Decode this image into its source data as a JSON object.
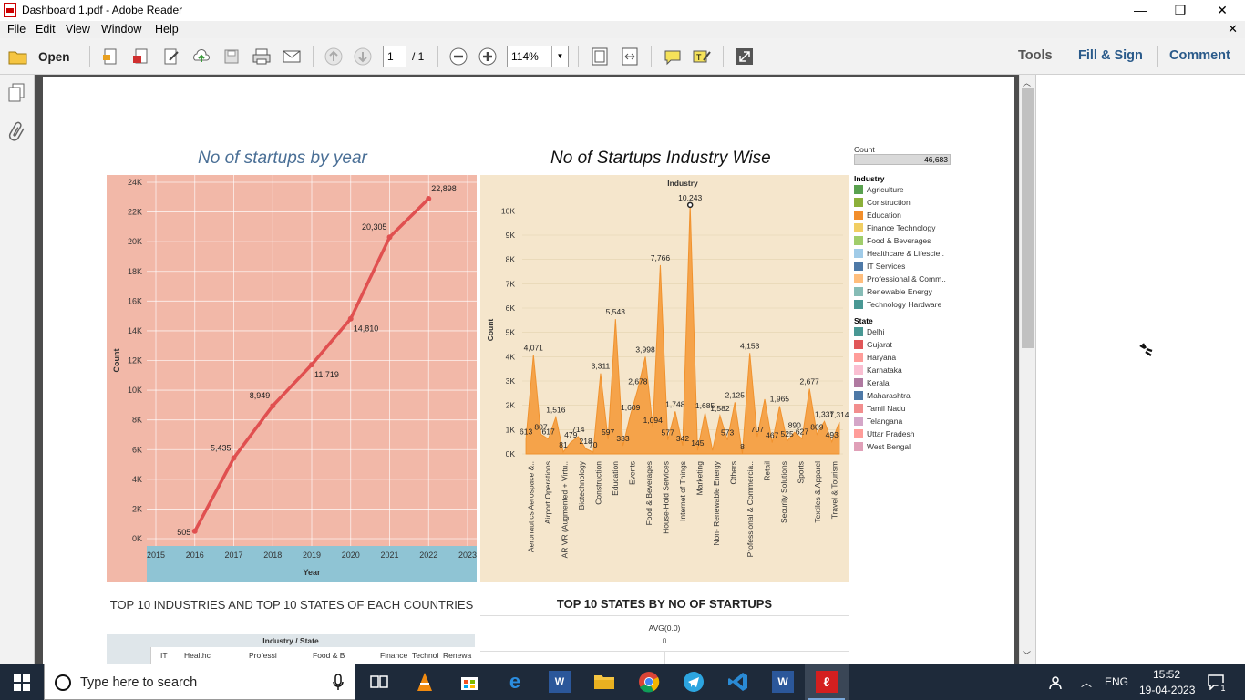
{
  "window": {
    "title": "Dashboard 1.pdf - Adobe Reader",
    "minimize": "—",
    "maximize": "❐",
    "close": "✕"
  },
  "menu": {
    "items": [
      "File",
      "Edit",
      "View",
      "Window",
      "Help"
    ],
    "close": "✕"
  },
  "toolbar": {
    "open_label": "Open",
    "page_current": "1",
    "page_total": "/ 1",
    "zoom": "114%",
    "tools": "Tools",
    "fill_sign": "Fill & Sign",
    "comment": "Comment"
  },
  "dashboard": {
    "year_title": "No of startups by year",
    "industry_title": "No of Startups Industry Wise",
    "bottom_left_title": "TOP 10 INDUSTRIES AND TOP 10 STATES OF EACH COUNTRIES",
    "bottom_right_title": "TOP 10 STATES BY NO OF STARTUPS",
    "bottom_table_header": "Industry / State",
    "bottom_table_cols": [
      "IT",
      "Healthc",
      "Professi",
      "Food & B",
      "Finance",
      "Technol",
      "Renewa"
    ],
    "avg_label": "AVG(0.0)",
    "avg_zero": "0"
  },
  "legend": {
    "count_label": "Count",
    "count_value": "46,683",
    "industry_label": "Industry",
    "industries": [
      {
        "name": "Agriculture",
        "color": "#59a14f"
      },
      {
        "name": "Construction",
        "color": "#8cb03a"
      },
      {
        "name": "Education",
        "color": "#f28e2b"
      },
      {
        "name": "Finance Technology",
        "color": "#f1ce63"
      },
      {
        "name": "Food & Beverages",
        "color": "#a0cd6b"
      },
      {
        "name": "Healthcare & Lifescie..",
        "color": "#a0cbe8"
      },
      {
        "name": "IT Services",
        "color": "#4e79a7"
      },
      {
        "name": "Professional & Comm..",
        "color": "#ffbe7d"
      },
      {
        "name": "Renewable Energy",
        "color": "#86bcb6"
      },
      {
        "name": "Technology Hardware",
        "color": "#499894"
      }
    ],
    "state_label": "State",
    "states": [
      {
        "name": "Delhi",
        "color": "#499894"
      },
      {
        "name": "Gujarat",
        "color": "#e15759"
      },
      {
        "name": "Haryana",
        "color": "#ff9d9a"
      },
      {
        "name": "Karnataka",
        "color": "#fabfd2"
      },
      {
        "name": "Kerala",
        "color": "#b07aa1"
      },
      {
        "name": "Maharashtra",
        "color": "#4e79a7"
      },
      {
        "name": "Tamil Nadu",
        "color": "#f28e8e"
      },
      {
        "name": "Telangana",
        "color": "#d4a6c8"
      },
      {
        "name": "Uttar Pradesh",
        "color": "#ff9d9a"
      },
      {
        "name": "West Bengal",
        "color": "#e0a0b8"
      }
    ]
  },
  "chart_data": [
    {
      "type": "line",
      "title": "No of startups by year",
      "xlabel": "Year",
      "ylabel": "Count",
      "x": [
        2016,
        2017,
        2018,
        2019,
        2020,
        2021,
        2022
      ],
      "values": [
        505,
        5435,
        8949,
        11719,
        14810,
        20305,
        22898
      ],
      "value_labels": [
        "505",
        "5,435",
        "8,949",
        "11,719",
        "14,810",
        "20,305",
        "22,898"
      ],
      "x_ticks": [
        "2015",
        "2016",
        "2017",
        "2018",
        "2019",
        "2020",
        "2021",
        "2022",
        "2023"
      ],
      "y_ticks": [
        "0K",
        "2K",
        "4K",
        "6K",
        "8K",
        "10K",
        "12K",
        "14K",
        "16K",
        "18K",
        "20K",
        "22K",
        "24K"
      ],
      "xlim": [
        2015,
        2023
      ],
      "ylim": [
        0,
        24000
      ],
      "colors": {
        "line": "#e05050",
        "background": "#f2b8a8",
        "axis_band": "#8fc4d4"
      }
    },
    {
      "type": "area",
      "title": "No of Startups Industry Wise",
      "xlabel": "Industry",
      "ylabel": "Count",
      "y_ticks": [
        "0K",
        "1K",
        "2K",
        "3K",
        "4K",
        "5K",
        "6K",
        "7K",
        "8K",
        "9K",
        "10K"
      ],
      "ylim": [
        0,
        10500
      ],
      "category_labels": [
        "Aeronautics Aerospace &..",
        "Airport Operations",
        "AR VR (Augmented + Virtu..",
        "Biotechnology",
        "Construction",
        "Education",
        "Events",
        "Food & Beverages",
        "House-Hold Services",
        "Internet of Things",
        "Marketing",
        "Non- Renewable Energy",
        "Others",
        "Professional & Commercia..",
        "Retail",
        "Security Solutions",
        "Sports",
        "Textiles & Apparel",
        "Travel & Tourism"
      ],
      "category_pos": [
        0.5,
        2.5,
        4.5,
        6.5,
        8.5,
        10.5,
        12.5,
        14.5,
        16.5,
        18.5,
        20.5,
        22.5,
        24.5,
        26.5,
        28.5,
        30.5,
        32.5,
        34.5,
        36.5
      ],
      "values": [
        613,
        4071,
        807,
        617,
        1516,
        81,
        479,
        714,
        218,
        70,
        3311,
        597,
        5543,
        333,
        1609,
        2678,
        3998,
        1094,
        7766,
        577,
        1748,
        342,
        10243,
        145,
        1685,
        145,
        1582,
        573,
        2125,
        8,
        4153,
        707,
        2251,
        467,
        1965,
        525,
        890,
        627,
        2677,
        809,
        1337,
        493,
        1314
      ],
      "value_labels": [
        {
          "i": 0,
          "text": "613"
        },
        {
          "i": 1,
          "text": "4,071"
        },
        {
          "i": 2,
          "text": "807"
        },
        {
          "i": 3,
          "text": "617"
        },
        {
          "i": 4,
          "text": "1,516"
        },
        {
          "i": 5,
          "text": "81"
        },
        {
          "i": 6,
          "text": "479"
        },
        {
          "i": 7,
          "text": "714"
        },
        {
          "i": 8,
          "text": "218"
        },
        {
          "i": 9,
          "text": "70"
        },
        {
          "i": 10,
          "text": "3,311"
        },
        {
          "i": 11,
          "text": "597"
        },
        {
          "i": 12,
          "text": "5,543"
        },
        {
          "i": 13,
          "text": "333"
        },
        {
          "i": 14,
          "text": "1,609"
        },
        {
          "i": 15,
          "text": "2,678"
        },
        {
          "i": 16,
          "text": "3,998"
        },
        {
          "i": 17,
          "text": "1,094"
        },
        {
          "i": 18,
          "text": "7,766"
        },
        {
          "i": 19,
          "text": "577"
        },
        {
          "i": 20,
          "text": "1,748"
        },
        {
          "i": 21,
          "text": "342"
        },
        {
          "i": 22,
          "text": "10,243"
        },
        {
          "i": 23,
          "text": "145"
        },
        {
          "i": 24,
          "text": "1,685"
        },
        {
          "i": 26,
          "text": "1,582"
        },
        {
          "i": 27,
          "text": "573"
        },
        {
          "i": 28,
          "text": "2,125"
        },
        {
          "i": 29,
          "text": "8"
        },
        {
          "i": 30,
          "text": "4,153"
        },
        {
          "i": 31,
          "text": "707"
        },
        {
          "i": 33,
          "text": "467"
        },
        {
          "i": 34,
          "text": "1,965"
        },
        {
          "i": 35,
          "text": "525"
        },
        {
          "i": 36,
          "text": "890"
        },
        {
          "i": 37,
          "text": "627"
        },
        {
          "i": 38,
          "text": "2,677"
        },
        {
          "i": 39,
          "text": "809"
        },
        {
          "i": 40,
          "text": "1,337"
        },
        {
          "i": 41,
          "text": "493"
        },
        {
          "i": 42,
          "text": "1,314"
        }
      ],
      "colors": {
        "area": "#f5a34a",
        "background": "#f5e6cc"
      }
    }
  ],
  "taskbar": {
    "search_placeholder": "Type here to search",
    "lang": "ENG",
    "time": "15:52",
    "date": "19-04-2023",
    "notif": "1"
  }
}
